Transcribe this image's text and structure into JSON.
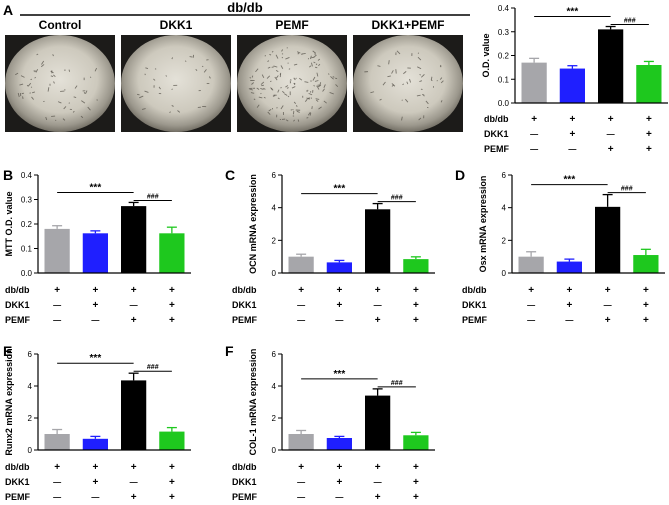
{
  "figure": {
    "header_title": "db/db",
    "photos": [
      {
        "name": "photo-control",
        "label": "Control"
      },
      {
        "name": "photo-dkk1",
        "label": "DKK1"
      },
      {
        "name": "photo-pemf",
        "label": "PEMF"
      },
      {
        "name": "photo-dkk1-pemf",
        "label": "DKK1+PEMF"
      }
    ],
    "design": {
      "rows": [
        "db/db",
        "DKK1",
        "PEMF"
      ],
      "symbols": [
        [
          "+",
          "+",
          "+",
          "+"
        ],
        [
          "—",
          "+",
          "—",
          "+"
        ],
        [
          "—",
          "—",
          "+",
          "+"
        ]
      ]
    },
    "colors": [
      "#a6a6aa",
      "#1f1fff",
      "#000000",
      "#1ec81e"
    ]
  },
  "chart_data": [
    {
      "panel": "A",
      "type": "bar",
      "title": "",
      "categories": [
        "Control",
        "DKK1",
        "PEMF",
        "DKK1+PEMF"
      ],
      "values": [
        0.17,
        0.145,
        0.31,
        0.16
      ],
      "errors": [
        0.018,
        0.012,
        0.012,
        0.015
      ],
      "ylabel": "O.D. value",
      "ylim": [
        0,
        0.4
      ],
      "yticks": [
        "0.0",
        "0.1",
        "0.2",
        "0.3",
        "0.4"
      ],
      "annotations": [
        "***",
        "###"
      ]
    },
    {
      "panel": "B",
      "type": "bar",
      "title": "",
      "categories": [
        "Control",
        "DKK1",
        "PEMF",
        "DKK1+PEMF"
      ],
      "values": [
        0.18,
        0.162,
        0.273,
        0.162
      ],
      "errors": [
        0.013,
        0.01,
        0.015,
        0.025
      ],
      "ylabel": "MTT O.D. value",
      "ylim": [
        0,
        0.4
      ],
      "yticks": [
        "0.0",
        "0.1",
        "0.2",
        "0.3",
        "0.4"
      ],
      "annotations": [
        "***",
        "###"
      ]
    },
    {
      "panel": "C",
      "type": "bar",
      "title": "",
      "categories": [
        "Control",
        "DKK1",
        "PEMF",
        "DKK1+PEMF"
      ],
      "values": [
        1.0,
        0.65,
        3.9,
        0.85
      ],
      "errors": [
        0.15,
        0.12,
        0.35,
        0.14
      ],
      "ylabel": "OCN mRNA expression",
      "ylim": [
        0,
        6
      ],
      "yticks": [
        "0",
        "2",
        "4",
        "6"
      ],
      "annotations": [
        "***",
        "###"
      ]
    },
    {
      "panel": "D",
      "type": "bar",
      "title": "",
      "categories": [
        "Control",
        "DKK1",
        "PEMF",
        "DKK1+PEMF"
      ],
      "values": [
        1.0,
        0.7,
        4.05,
        1.1
      ],
      "errors": [
        0.3,
        0.15,
        0.75,
        0.35
      ],
      "ylabel": "Osx mRNA expression",
      "ylim": [
        0,
        6
      ],
      "yticks": [
        "0",
        "2",
        "4",
        "6"
      ],
      "annotations": [
        "***",
        "###"
      ]
    },
    {
      "panel": "E",
      "type": "bar",
      "title": "",
      "categories": [
        "Control",
        "DKK1",
        "PEMF",
        "DKK1+PEMF"
      ],
      "values": [
        1.0,
        0.7,
        4.35,
        1.15
      ],
      "errors": [
        0.28,
        0.15,
        0.45,
        0.25
      ],
      "ylabel": "Runx2 mRNA expression",
      "ylim": [
        0,
        6
      ],
      "yticks": [
        "0",
        "2",
        "4",
        "6"
      ],
      "annotations": [
        "***",
        "###"
      ]
    },
    {
      "panel": "F",
      "type": "bar",
      "title": "",
      "categories": [
        "Control",
        "DKK1",
        "PEMF",
        "DKK1+PEMF"
      ],
      "values": [
        1.0,
        0.75,
        3.4,
        0.92
      ],
      "errors": [
        0.22,
        0.1,
        0.42,
        0.18
      ],
      "ylabel": "COL-1 mRNA expression",
      "ylim": [
        0,
        6
      ],
      "yticks": [
        "0",
        "2",
        "4",
        "6"
      ],
      "annotations": [
        "***",
        "###"
      ]
    }
  ]
}
